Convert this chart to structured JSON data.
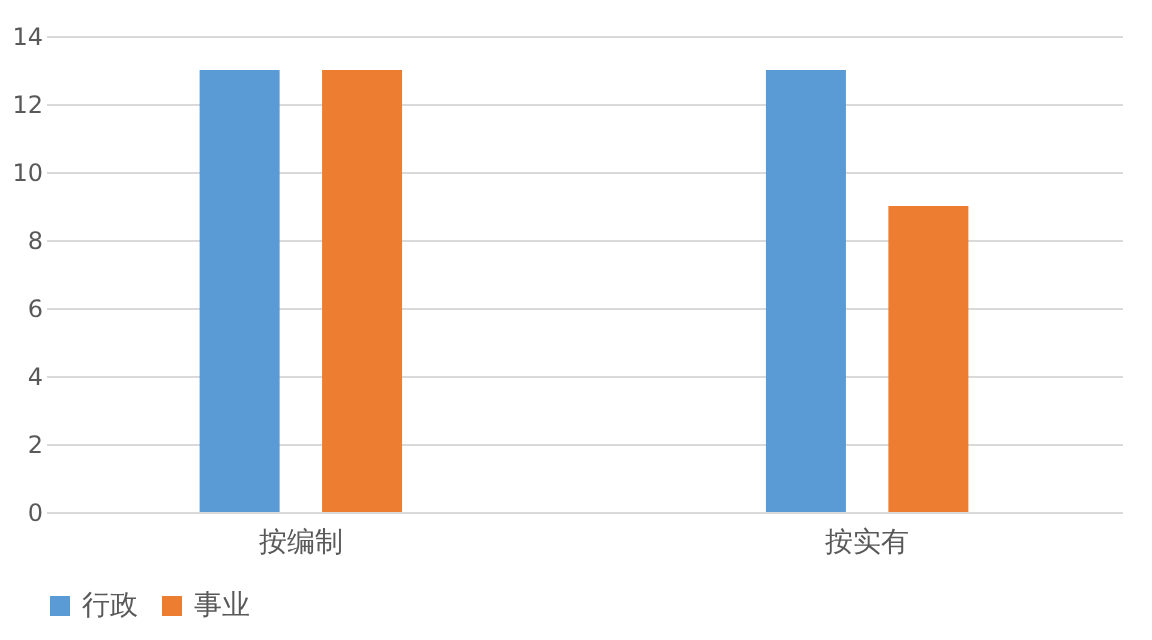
{
  "chart_data": {
    "type": "bar",
    "categories": [
      "按编制",
      "按实有"
    ],
    "series": [
      {
        "name": "行政",
        "color": "#5b9bd5",
        "values": [
          13,
          13
        ]
      },
      {
        "name": "事业",
        "color": "#ed7d31",
        "values": [
          13,
          9
        ]
      }
    ],
    "ylim": [
      0,
      14
    ],
    "yticks": [
      0,
      2,
      4,
      6,
      8,
      10,
      12,
      14
    ],
    "grid": "y",
    "legend": "bottom"
  }
}
